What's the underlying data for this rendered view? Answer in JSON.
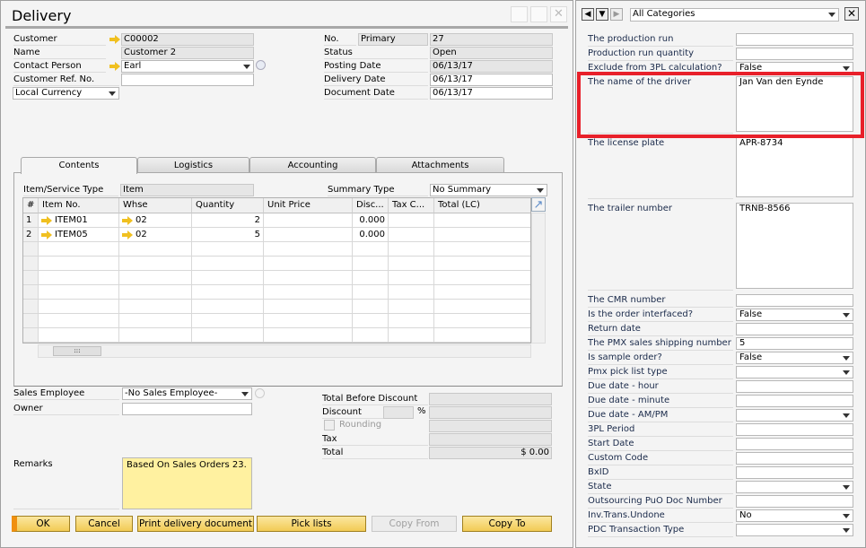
{
  "window": {
    "title": "Delivery"
  },
  "header": {
    "customer_label": "Customer",
    "customer": "C00002",
    "name_label": "Name",
    "name": "Customer 2",
    "contact_label": "Contact Person",
    "contact": "Earl",
    "ref_label": "Customer Ref. No.",
    "ref": "",
    "currency": "Local Currency",
    "no_label": "No.",
    "series": "Primary",
    "no": "27",
    "status_label": "Status",
    "status": "Open",
    "posting_label": "Posting Date",
    "posting": "06/13/17",
    "delivery_label": "Delivery Date",
    "delivery": "06/13/17",
    "document_label": "Document Date",
    "document": "06/13/17"
  },
  "tabs": [
    "Contents",
    "Logistics",
    "Accounting",
    "Attachments"
  ],
  "contents": {
    "type_label": "Item/Service Type",
    "type": "Item",
    "summary_label": "Summary Type",
    "summary": "No Summary",
    "columns": [
      "#",
      "Item No.",
      "Whse",
      "Quantity",
      "Unit Price",
      "Disc...",
      "Tax C...",
      "Total (LC)"
    ],
    "rows": [
      {
        "n": "1",
        "item": "ITEM01",
        "whse": "02",
        "qty": "2",
        "price": "",
        "disc": "0.000",
        "tax": "",
        "total": ""
      },
      {
        "n": "2",
        "item": "ITEM05",
        "whse": "02",
        "qty": "5",
        "price": "",
        "disc": "0.000",
        "tax": "",
        "total": ""
      }
    ]
  },
  "footer": {
    "sales_emp_label": "Sales Employee",
    "sales_emp": "-No Sales Employee-",
    "owner_label": "Owner",
    "owner": "",
    "remarks_label": "Remarks",
    "remarks": "Based On Sales Orders 23.",
    "tbd_label": "Total Before Discount",
    "discount_label": "Discount",
    "pct": "%",
    "rounding_label": "Rounding",
    "tax_label": "Tax",
    "total_label": "Total",
    "total": "$ 0.00"
  },
  "buttons": {
    "ok": "OK",
    "cancel": "Cancel",
    "print": "Print delivery document",
    "pick": "Pick lists",
    "copy_from": "Copy From",
    "copy_to": "Copy To"
  },
  "udf": {
    "category": "All Categories",
    "fields": [
      {
        "label": "The production run",
        "value": "",
        "type": "text"
      },
      {
        "label": "Production run quantity",
        "value": "",
        "type": "text"
      },
      {
        "label": "Exclude from 3PL calculation?",
        "value": "False",
        "type": "select"
      },
      {
        "label": "The name of the driver",
        "value": "Jan Van den Eynde",
        "type": "area",
        "highlight": true
      },
      {
        "label": "The license plate",
        "value": "APR-8734",
        "type": "area"
      },
      {
        "label": "The trailer number",
        "value": "TRNB-8566",
        "type": "area"
      },
      {
        "label": "The CMR number",
        "value": "",
        "type": "text"
      },
      {
        "label": "Is the order interfaced?",
        "value": "False",
        "type": "select"
      },
      {
        "label": "Return date",
        "value": "",
        "type": "text"
      },
      {
        "label": "The PMX sales shipping number",
        "value": "5",
        "type": "text"
      },
      {
        "label": "Is sample order?",
        "value": "False",
        "type": "select"
      },
      {
        "label": "Pmx pick list type",
        "value": "",
        "type": "select"
      },
      {
        "label": "Due date - hour",
        "value": "",
        "type": "text"
      },
      {
        "label": "Due date - minute",
        "value": "",
        "type": "text"
      },
      {
        "label": "Due date - AM/PM",
        "value": "",
        "type": "select"
      },
      {
        "label": "3PL Period",
        "value": "",
        "type": "text"
      },
      {
        "label": "Start Date",
        "value": "",
        "type": "text"
      },
      {
        "label": "Custom Code",
        "value": "",
        "type": "text"
      },
      {
        "label": "BxID",
        "value": "",
        "type": "text"
      },
      {
        "label": "State",
        "value": "",
        "type": "select"
      },
      {
        "label": "Outsourcing PuO Doc Number",
        "value": "",
        "type": "text"
      },
      {
        "label": "Inv.Trans.Undone",
        "value": "No",
        "type": "select"
      },
      {
        "label": "PDC Transaction Type",
        "value": "",
        "type": "select"
      }
    ]
  },
  "colors": {
    "highlight": "#e8202a",
    "button": "#f2cb55",
    "remarks_bg": "#fff1a0"
  }
}
